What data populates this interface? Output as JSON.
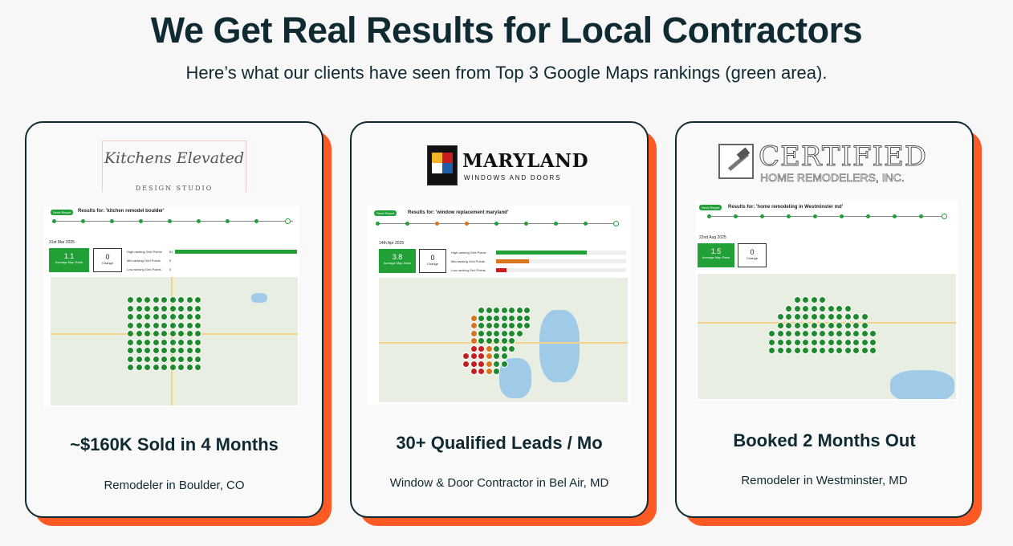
{
  "header": {
    "title": "We Get Real Results for Local Contractors",
    "subtitle": "Here’s what our clients have seen from Top 3 Google Maps rankings (green area)."
  },
  "cards": [
    {
      "logo_line1": "Kitchens Elevated",
      "logo_line2": "DESIGN STUDIO",
      "results_label": "Results for: 'kitchen remodel boulder'",
      "date": "31st Mar 2025",
      "average_rank": "1.1",
      "average_rank_label": "Average Map Rank",
      "change": "0",
      "change_label": "Change",
      "bars": [
        {
          "label": "High-ranking Grid Points",
          "count": "81",
          "value": 1.0,
          "color": "#21a038"
        },
        {
          "label": "Mid-ranking Grid Points",
          "count": "0",
          "value": 0,
          "color": "#d9731c"
        },
        {
          "label": "Low-ranking Grid Points",
          "count": "0",
          "value": 0,
          "color": "#c81e1e"
        }
      ],
      "heading": "~$160K Sold in 4 Months",
      "subheading": "Remodeler in Boulder, CO"
    },
    {
      "logo_line1": "MARYLAND",
      "logo_line2": "WINDOWS AND DOORS",
      "results_label": "Results for: 'window replacement maryland'",
      "date": "14th Apr 2025",
      "average_rank": "3.8",
      "average_rank_label": "Average Map Rank",
      "change": "0",
      "change_label": "Change",
      "bars": [
        {
          "label": "High-ranking Grid Points",
          "count": "",
          "value": 0.7,
          "color": "#21a038"
        },
        {
          "label": "Mid-ranking Grid Points",
          "count": "",
          "value": 0.25,
          "color": "#d9731c"
        },
        {
          "label": "Low-ranking Grid Points",
          "count": "",
          "value": 0.08,
          "color": "#c81e1e"
        }
      ],
      "heading": "30+ Qualified Leads / Mo",
      "subheading": "Window & Door Contractor in Bel Air, MD"
    },
    {
      "logo_line1": "CERTIFIED",
      "logo_line2": "HOME REMODELERS, INC.",
      "results_label": "Results for: 'home remodeling in Westminster md'",
      "date": "22nd Aug 2025",
      "average_rank": "1.5",
      "average_rank_label": "Average Map Rank",
      "change": "0",
      "change_label": "Change",
      "bars": [],
      "heading": "Booked 2 Months Out",
      "subheading": "Remodeler in Westminster, MD"
    }
  ],
  "colors": {
    "accent": "#ff5a24",
    "dark": "#0f2a33",
    "green": "#21a038",
    "orange": "#d9731c",
    "red": "#c81e1e"
  }
}
